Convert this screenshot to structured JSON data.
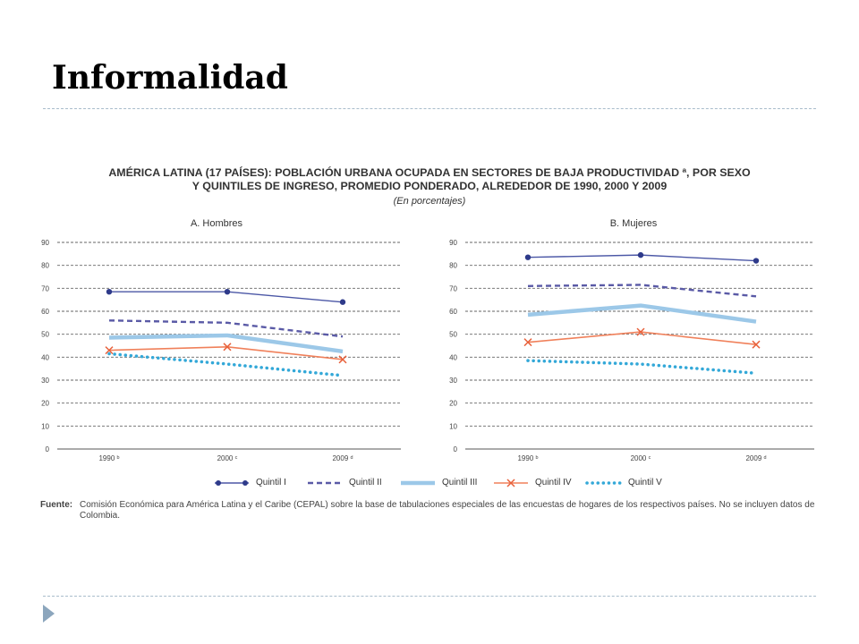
{
  "slide": {
    "title": "Informalidad"
  },
  "chart_data": {
    "type": "line",
    "title_line1": "AMÉRICA LATINA (17 PAÍSES): POBLACIÓN URBANA OCUPADA EN SECTORES DE BAJA PRODUCTIVIDAD ª, POR SEXO",
    "title_line2": "Y QUINTILES DE INGRESO, PROMEDIO PONDERADO, ALREDEDOR DE 1990, 2000 Y 2009",
    "subtitle": "(En porcentajes)",
    "categories": [
      "1990 ᵇ",
      "2000 ᶜ",
      "2009 ᵈ"
    ],
    "yticks": [
      "0",
      "10",
      "20",
      "30",
      "40",
      "50",
      "60",
      "70",
      "80",
      "90"
    ],
    "ylim": [
      0,
      90
    ],
    "grid": true,
    "legend_position": "bottom",
    "series_styles": [
      {
        "name": "Quintil I",
        "color": "#4b57a6",
        "style": "marker-dot"
      },
      {
        "name": "Quintil II",
        "color": "#5a5aa6",
        "style": "dashed"
      },
      {
        "name": "Quintil III",
        "color": "#9cc8e8",
        "style": "thick"
      },
      {
        "name": "Quintil IV",
        "color": "#f0805a",
        "style": "marker-x"
      },
      {
        "name": "Quintil V",
        "color": "#33a8d8",
        "style": "dotted"
      }
    ],
    "panels": [
      {
        "title": "A. Hombres",
        "series": [
          {
            "name": "Quintil I",
            "values": [
              68.5,
              68.5,
              64
            ]
          },
          {
            "name": "Quintil II",
            "values": [
              56,
              55,
              49
            ]
          },
          {
            "name": "Quintil III",
            "values": [
              48.5,
              49.5,
              42.5
            ]
          },
          {
            "name": "Quintil IV",
            "values": [
              43,
              44.5,
              39
            ]
          },
          {
            "name": "Quintil V",
            "values": [
              41.5,
              37,
              32
            ]
          }
        ]
      },
      {
        "title": "B. Mujeres",
        "series": [
          {
            "name": "Quintil I",
            "values": [
              83.5,
              84.5,
              82
            ]
          },
          {
            "name": "Quintil II",
            "values": [
              71,
              71.5,
              66.5
            ]
          },
          {
            "name": "Quintil III",
            "values": [
              58.5,
              62.5,
              55.5
            ]
          },
          {
            "name": "Quintil IV",
            "values": [
              46.5,
              51,
              45.5
            ]
          },
          {
            "name": "Quintil V",
            "values": [
              38.5,
              37,
              33
            ]
          }
        ]
      }
    ]
  },
  "source": {
    "label": "Fuente:",
    "text": "Comisión Económica para América Latina y el Caribe (CEPAL) sobre la base de tabulaciones especiales de las encuestas de hogares de los respectivos países. No se incluyen datos de Colombia."
  }
}
